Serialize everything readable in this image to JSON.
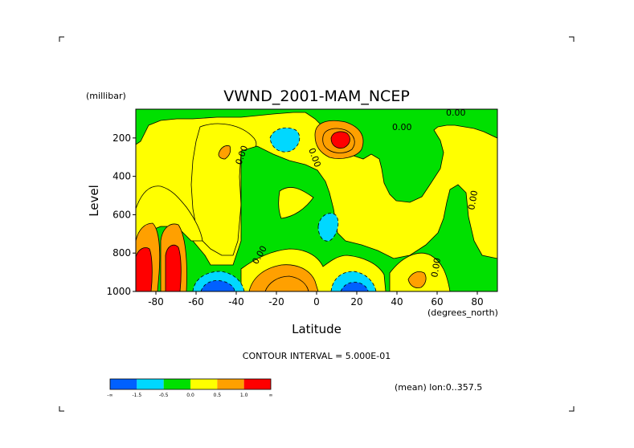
{
  "chart_data": {
    "type": "contour",
    "title": "VWND_2001-MAM_NCEP",
    "ylabel": "Level",
    "yunit": "(millibar)",
    "xlabel": "Latitude",
    "xunit": "(degrees_north)",
    "xlim": [
      -90,
      90
    ],
    "ylim": [
      1000,
      50
    ],
    "x_ticks": [
      -80,
      -60,
      -40,
      -20,
      0,
      20,
      40,
      60,
      80
    ],
    "y_ticks": [
      200,
      400,
      600,
      800,
      1000
    ],
    "contour_labels": [
      "0.00",
      "0.00",
      "0.00",
      "0.00",
      "0.00",
      "0.00",
      "0.00"
    ],
    "contour_interval_text": "CONTOUR INTERVAL = 5.000E-01",
    "footer_text": "(mean) lon:0..357.5",
    "colorbar": {
      "colors": [
        "#0060ff",
        "#00d8ff",
        "#00e000",
        "#ffff00",
        "#ffa000",
        "#ff0000"
      ],
      "labels": [
        "-∞",
        "-1.5",
        "-0.5",
        "0.0",
        "0.5",
        "1.0",
        "∞"
      ]
    },
    "regions": [
      {
        "level": "0.0 to 0.5",
        "description": "background"
      },
      {
        "level": "-0.5 to 0.0",
        "x": [
          -45,
          -10
        ],
        "y": [
          900,
          150
        ]
      },
      {
        "level": "-0.5 to 0.0",
        "x": [
          30,
          60
        ],
        "y": [
          900,
          150
        ]
      },
      {
        "level": "-1.0 to -0.5",
        "x": [
          -20,
          -10
        ],
        "y": [
          200,
          100
        ]
      },
      {
        "level": "-1.0 to -0.5",
        "x": [
          0,
          10
        ],
        "y": [
          650,
          500
        ]
      },
      {
        "level": "-1.5 to -1.0",
        "x": [
          -70,
          -50
        ],
        "y": [
          1000,
          950
        ]
      },
      {
        "level": "-1.0 to -0.5",
        "x": [
          10,
          30
        ],
        "y": [
          1000,
          900
        ]
      },
      {
        "level": "0.5 to 1.0",
        "x": [
          -65,
          -60
        ],
        "y": [
          1000,
          650
        ]
      },
      {
        "level": "1.0 to ∞",
        "x": [
          -90,
          -82
        ],
        "y": [
          1000,
          750
        ]
      },
      {
        "level": "1.0 to ∞",
        "x": [
          -75,
          -65
        ],
        "y": [
          1000,
          750
        ]
      },
      {
        "level": "1.0 to ∞",
        "x": [
          5,
          15
        ],
        "y": [
          200,
          150
        ]
      },
      {
        "level": "0.5 to 1.0",
        "x": [
          -35,
          -5
        ],
        "y": [
          1000,
          850
        ]
      },
      {
        "level": "0.5 to 1.0",
        "x": [
          45,
          55
        ],
        "y": [
          1000,
          900
        ]
      }
    ]
  }
}
